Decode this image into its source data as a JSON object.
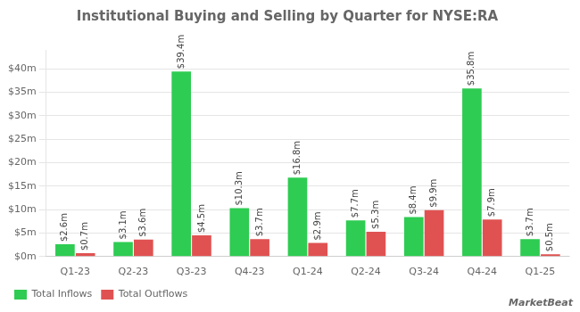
{
  "chart_data": {
    "type": "bar",
    "title": "Institutional Buying and Selling by Quarter for NYSE:RA",
    "categories": [
      "Q1-23",
      "Q2-23",
      "Q3-23",
      "Q4-23",
      "Q1-24",
      "Q2-24",
      "Q3-24",
      "Q4-24",
      "Q1-25"
    ],
    "series": [
      {
        "name": "Total Inflows",
        "color": "#2ecc52",
        "values": [
          2.6,
          3.1,
          39.4,
          10.3,
          16.8,
          7.7,
          8.4,
          35.8,
          3.7
        ],
        "value_labels": [
          "$2.6m",
          "$3.1m",
          "$39.4m",
          "$10.3m",
          "$16.8m",
          "$7.7m",
          "$8.4m",
          "$35.8m",
          "$3.7m"
        ]
      },
      {
        "name": "Total Outflows",
        "color": "#e05252",
        "values": [
          0.7,
          3.6,
          4.5,
          3.7,
          2.9,
          5.3,
          9.9,
          7.9,
          0.5
        ],
        "value_labels": [
          "$0.7m",
          "$3.6m",
          "$4.5m",
          "$3.7m",
          "$2.9m",
          "$5.3m",
          "$9.9m",
          "$7.9m",
          "$0.5m"
        ]
      }
    ],
    "ylim": [
      0,
      44
    ],
    "yticks": [
      {
        "value": 0,
        "label": "$0m"
      },
      {
        "value": 5,
        "label": "$5m"
      },
      {
        "value": 10,
        "label": "$10m"
      },
      {
        "value": 15,
        "label": "$15m"
      },
      {
        "value": 20,
        "label": "$20m"
      },
      {
        "value": 25,
        "label": "$25m"
      },
      {
        "value": 30,
        "label": "$30m"
      },
      {
        "value": 35,
        "label": "$35m"
      },
      {
        "value": 40,
        "label": "$40m"
      }
    ],
    "grid": true,
    "legend": "bottom",
    "data_labels": true,
    "annotations": [
      "MarketBeat"
    ]
  }
}
